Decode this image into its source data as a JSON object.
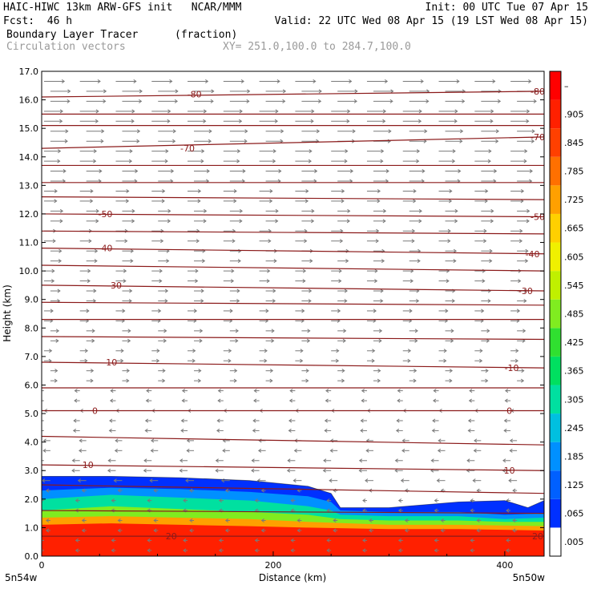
{
  "header": {
    "line1_left": "HAIC-HIWC 13km ARW-GFS init   NCAR/MMM",
    "line1_right": "Init: 00 UTC Tue 07 Apr 15",
    "line2_left": "Fcst:  46 h",
    "line2_right": "Valid: 22 UTC Wed 08 Apr 15 (19 LST Wed 08 Apr 15)",
    "field_name": "Boundary Layer Tracer",
    "field_units": "(fraction)",
    "vector_name": "Circulation vectors",
    "xy_range": "XY= 251.0,100.0 to 284.7,100.0"
  },
  "colors": {
    "contour_line": "#8b1a1a",
    "vector": "#7a7a7a",
    "frame": "#000000"
  },
  "chart_data": {
    "type": "heatmap",
    "title": "Boundary Layer Tracer (fraction)",
    "xlabel": "Distance (km)",
    "ylabel": "Height (km)",
    "xlim": [
      0,
      434
    ],
    "ylim": [
      0,
      17
    ],
    "x_ticks": [
      0,
      200,
      400
    ],
    "x_tick_labels": [
      "0",
      "200",
      "400"
    ],
    "x_endpoint_labels": [
      "5n54w",
      "5n50w"
    ],
    "y_ticks": [
      0,
      1,
      2,
      3,
      4,
      5,
      6,
      7,
      8,
      9,
      10,
      11,
      12,
      13,
      14,
      15,
      16,
      17
    ],
    "y_tick_labels": [
      "0.0",
      "1.0",
      "2.0",
      "3.0",
      "4.0",
      "5.0",
      "6.0",
      "7.0",
      "8.0",
      "9.0",
      "10.0",
      "11.0",
      "12.0",
      "13.0",
      "14.0",
      "15.0",
      "16.0",
      "17.0"
    ],
    "colorbar": {
      "labels": [
        ".005",
        ".065",
        ".125",
        ".185",
        ".245",
        ".305",
        ".365",
        ".425",
        ".485",
        ".545",
        ".605",
        ".665",
        ".725",
        ".785",
        ".845",
        ".905",
        "–"
      ],
      "colors": [
        "#ffffff",
        "#0030ff",
        "#0060ff",
        "#0090ff",
        "#00c0e0",
        "#00e0a0",
        "#00e060",
        "#30e030",
        "#80ec20",
        "#c0f000",
        "#f0f000",
        "#ffd000",
        "#ffa000",
        "#ff7000",
        "#ff4000",
        "#ff2000",
        "#ff0000"
      ]
    },
    "isotherm_series": [
      {
        "name": "-80",
        "points": [
          [
            0,
            16.1
          ],
          [
            434,
            16.3
          ]
        ]
      },
      {
        "name": "",
        "points": [
          [
            0,
            15.5
          ],
          [
            434,
            15.5
          ]
        ]
      },
      {
        "name": "",
        "points": [
          [
            0,
            15.1
          ],
          [
            434,
            15.1
          ]
        ]
      },
      {
        "name": "-70",
        "points": [
          [
            0,
            14.3
          ],
          [
            434,
            14.7
          ]
        ]
      },
      {
        "name": "",
        "points": [
          [
            0,
            13.7
          ],
          [
            434,
            13.7
          ]
        ]
      },
      {
        "name": "",
        "points": [
          [
            0,
            13.1
          ],
          [
            434,
            13.1
          ]
        ]
      },
      {
        "name": "",
        "points": [
          [
            0,
            12.6
          ],
          [
            434,
            12.5
          ]
        ]
      },
      {
        "name": "-50",
        "points": [
          [
            0,
            12.0
          ],
          [
            434,
            11.9
          ]
        ]
      },
      {
        "name": "",
        "points": [
          [
            0,
            11.4
          ],
          [
            434,
            11.3
          ]
        ]
      },
      {
        "name": "-40",
        "points": [
          [
            0,
            10.8
          ],
          [
            434,
            10.6
          ]
        ]
      },
      {
        "name": "",
        "points": [
          [
            0,
            10.2
          ],
          [
            434,
            10.0
          ]
        ]
      },
      {
        "name": "-30",
        "points": [
          [
            0,
            9.5
          ],
          [
            434,
            9.3
          ]
        ]
      },
      {
        "name": "",
        "points": [
          [
            0,
            8.9
          ],
          [
            434,
            8.8
          ]
        ]
      },
      {
        "name": "",
        "points": [
          [
            0,
            8.3
          ],
          [
            434,
            8.3
          ]
        ]
      },
      {
        "name": "",
        "points": [
          [
            0,
            7.7
          ],
          [
            434,
            7.6
          ]
        ]
      },
      {
        "name": "-10",
        "points": [
          [
            0,
            6.8
          ],
          [
            434,
            6.6
          ]
        ]
      },
      {
        "name": "",
        "points": [
          [
            0,
            5.9
          ],
          [
            434,
            5.9
          ]
        ]
      },
      {
        "name": "0",
        "points": [
          [
            0,
            5.1
          ],
          [
            434,
            5.1
          ]
        ]
      },
      {
        "name": "",
        "points": [
          [
            0,
            4.2
          ],
          [
            434,
            3.9
          ]
        ]
      },
      {
        "name": "10",
        "points": [
          [
            0,
            3.2
          ],
          [
            434,
            3.0
          ]
        ]
      },
      {
        "name": "",
        "points": [
          [
            0,
            2.5
          ],
          [
            434,
            2.2
          ]
        ]
      },
      {
        "name": "",
        "points": [
          [
            0,
            1.6
          ],
          [
            434,
            1.5
          ]
        ]
      },
      {
        "name": "20",
        "points": [
          [
            0,
            0.7
          ],
          [
            434,
            0.7
          ]
        ]
      }
    ],
    "contour_labels": [
      {
        "text": "-80",
        "x": 132,
        "y": 16.2
      },
      {
        "text": "-80",
        "x": 438,
        "y": 16.3
      },
      {
        "text": "-70",
        "x": 126,
        "y": 14.3
      },
      {
        "text": "-70",
        "x": 432,
        "y": 14.7
      },
      {
        "text": "-50",
        "x": 55,
        "y": 12.0
      },
      {
        "text": "-50",
        "x": 432,
        "y": 11.9
      },
      {
        "text": "-40",
        "x": 55,
        "y": 10.8
      },
      {
        "text": "-40",
        "x": 424,
        "y": 10.6
      },
      {
        "text": "-30",
        "x": 63,
        "y": 9.5
      },
      {
        "text": "-30",
        "x": 418,
        "y": 9.3
      },
      {
        "text": "-10",
        "x": 59,
        "y": 6.8
      },
      {
        "text": "-10",
        "x": 406,
        "y": 6.6
      },
      {
        "text": "0",
        "x": 46,
        "y": 5.1
      },
      {
        "text": "0",
        "x": 404,
        "y": 5.1
      },
      {
        "text": "10",
        "x": 40,
        "y": 3.2
      },
      {
        "text": "10",
        "x": 404,
        "y": 3.0
      },
      {
        "text": "20",
        "x": 112,
        "y": 0.7
      },
      {
        "text": "20",
        "x": 434,
        "y": 0.7
      }
    ],
    "tracer_top": [
      [
        0,
        2.8
      ],
      [
        60,
        2.8
      ],
      [
        120,
        2.75
      ],
      [
        180,
        2.65
      ],
      [
        230,
        2.45
      ],
      [
        250,
        2.2
      ],
      [
        258,
        1.7
      ],
      [
        300,
        1.7
      ],
      [
        360,
        1.9
      ],
      [
        400,
        1.95
      ],
      [
        420,
        1.7
      ],
      [
        434,
        1.95
      ]
    ],
    "tracer_bands": [
      {
        "value": 0.065,
        "top": [
          [
            0,
            2.8
          ],
          [
            60,
            2.8
          ],
          [
            120,
            2.75
          ],
          [
            180,
            2.65
          ],
          [
            230,
            2.45
          ],
          [
            250,
            2.2
          ],
          [
            258,
            1.7
          ],
          [
            300,
            1.7
          ],
          [
            360,
            1.9
          ],
          [
            400,
            1.95
          ],
          [
            420,
            1.7
          ],
          [
            434,
            1.95
          ]
        ]
      },
      {
        "value": 0.185,
        "top": [
          [
            0,
            2.3
          ],
          [
            60,
            2.4
          ],
          [
            120,
            2.35
          ],
          [
            180,
            2.25
          ],
          [
            230,
            2.1
          ],
          [
            250,
            1.9
          ],
          [
            258,
            1.6
          ],
          [
            300,
            1.55
          ],
          [
            360,
            1.55
          ],
          [
            400,
            1.45
          ],
          [
            434,
            1.5
          ]
        ]
      },
      {
        "value": 0.305,
        "top": [
          [
            0,
            2.0
          ],
          [
            60,
            2.15
          ],
          [
            120,
            2.05
          ],
          [
            180,
            1.95
          ],
          [
            230,
            1.75
          ],
          [
            250,
            1.6
          ],
          [
            258,
            1.45
          ],
          [
            300,
            1.4
          ],
          [
            360,
            1.4
          ],
          [
            400,
            1.3
          ],
          [
            434,
            1.35
          ]
        ]
      },
      {
        "value": 0.485,
        "top": [
          [
            0,
            1.6
          ],
          [
            60,
            1.75
          ],
          [
            120,
            1.65
          ],
          [
            180,
            1.55
          ],
          [
            230,
            1.45
          ],
          [
            258,
            1.3
          ],
          [
            300,
            1.25
          ],
          [
            360,
            1.25
          ],
          [
            400,
            1.2
          ],
          [
            434,
            1.2
          ]
        ]
      },
      {
        "value": 0.725,
        "top": [
          [
            0,
            1.35
          ],
          [
            60,
            1.4
          ],
          [
            120,
            1.35
          ],
          [
            180,
            1.3
          ],
          [
            230,
            1.2
          ],
          [
            300,
            1.1
          ],
          [
            360,
            1.1
          ],
          [
            434,
            1.05
          ]
        ]
      },
      {
        "value": 0.905,
        "top": [
          [
            0,
            1.1
          ],
          [
            60,
            1.15
          ],
          [
            120,
            1.1
          ],
          [
            180,
            1.05
          ],
          [
            230,
            1.0
          ],
          [
            300,
            0.95
          ],
          [
            360,
            0.95
          ],
          [
            434,
            0.9
          ]
        ]
      }
    ],
    "grid": false
  }
}
